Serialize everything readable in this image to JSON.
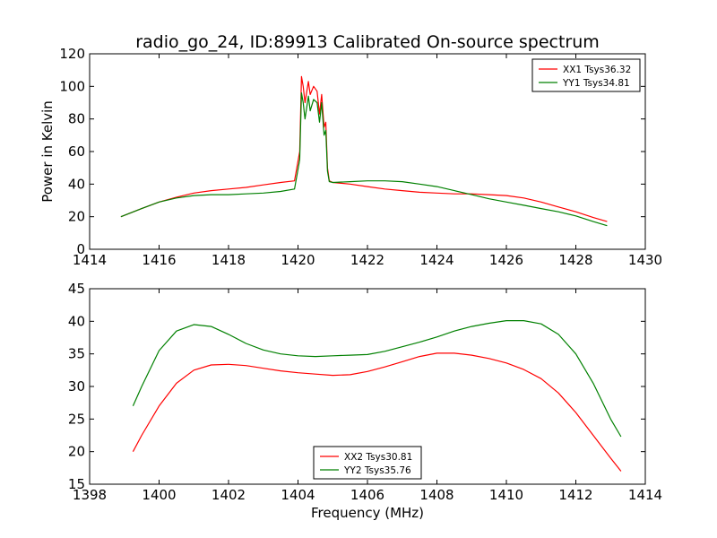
{
  "figure": {
    "background": "#ffffff"
  },
  "chart_data": [
    {
      "type": "line",
      "title": "radio_go_24, ID:89913 Calibrated On-source spectrum",
      "xlabel": "",
      "ylabel": "Power in Kelvin",
      "xlim": [
        1414,
        1430
      ],
      "ylim": [
        0,
        120
      ],
      "xticks": [
        1414,
        1416,
        1418,
        1420,
        1422,
        1424,
        1426,
        1428,
        1430
      ],
      "yticks": [
        0,
        20,
        40,
        60,
        80,
        100,
        120
      ],
      "legend_position": "top-right",
      "grid": false,
      "series": [
        {
          "name": "XX1 Tsys36.32",
          "color": "#ff0000",
          "x": [
            1414.9,
            1415.5,
            1416.0,
            1416.5,
            1417.0,
            1417.5,
            1418.0,
            1418.5,
            1419.0,
            1419.5,
            1419.9,
            1420.05,
            1420.1,
            1420.15,
            1420.2,
            1420.3,
            1420.35,
            1420.45,
            1420.55,
            1420.62,
            1420.68,
            1420.75,
            1420.8,
            1420.85,
            1420.9,
            1421.0,
            1421.5,
            1422.0,
            1422.5,
            1423.0,
            1423.5,
            1424.0,
            1424.5,
            1425.0,
            1425.5,
            1426.0,
            1426.5,
            1427.0,
            1427.5,
            1428.0,
            1428.5,
            1428.9
          ],
          "y": [
            20,
            25,
            29,
            32,
            34.5,
            36,
            37,
            38,
            39.5,
            41,
            42,
            60,
            106,
            100,
            90,
            103,
            95,
            100,
            97,
            83,
            95,
            75,
            78,
            50,
            42,
            41,
            40,
            38.5,
            37,
            36,
            35,
            34.5,
            34,
            34,
            33.5,
            33,
            31.5,
            29,
            26,
            23,
            19.5,
            17
          ]
        },
        {
          "name": "YY1 Tsys34.81",
          "color": "#008000",
          "x": [
            1414.9,
            1415.5,
            1416.0,
            1416.5,
            1417.0,
            1417.5,
            1418.0,
            1418.5,
            1419.0,
            1419.5,
            1419.9,
            1420.05,
            1420.1,
            1420.15,
            1420.2,
            1420.3,
            1420.35,
            1420.45,
            1420.55,
            1420.62,
            1420.68,
            1420.75,
            1420.8,
            1420.85,
            1420.9,
            1421.0,
            1421.5,
            1422.0,
            1422.5,
            1423.0,
            1423.5,
            1424.0,
            1424.5,
            1425.0,
            1425.5,
            1426.0,
            1426.5,
            1427.0,
            1427.5,
            1428.0,
            1428.5,
            1428.9
          ],
          "y": [
            20,
            25,
            29,
            31.5,
            33,
            33.5,
            33.5,
            34,
            34.5,
            35.5,
            37,
            55,
            96,
            90,
            80,
            94,
            85,
            92,
            90,
            78,
            90,
            70,
            73,
            48,
            41.5,
            41,
            41.5,
            42,
            42,
            41.5,
            40,
            38.5,
            36,
            33.5,
            31,
            29,
            27,
            25,
            23,
            20.5,
            17,
            14.5
          ]
        }
      ]
    },
    {
      "type": "line",
      "title": "",
      "xlabel": "Frequency (MHz)",
      "ylabel": "",
      "xlim": [
        1398,
        1414
      ],
      "ylim": [
        15,
        45
      ],
      "xticks": [
        1398,
        1400,
        1402,
        1404,
        1406,
        1408,
        1410,
        1412,
        1414
      ],
      "yticks": [
        15,
        20,
        25,
        30,
        35,
        40,
        45
      ],
      "legend_position": "bottom-center",
      "grid": false,
      "series": [
        {
          "name": "XX2 Tsys30.81",
          "color": "#ff0000",
          "x": [
            1399.25,
            1399.5,
            1400.0,
            1400.5,
            1401.0,
            1401.5,
            1402.0,
            1402.5,
            1403.0,
            1403.5,
            1404.0,
            1404.5,
            1405.0,
            1405.5,
            1406.0,
            1406.5,
            1407.0,
            1407.5,
            1408.0,
            1408.5,
            1409.0,
            1409.5,
            1410.0,
            1410.5,
            1411.0,
            1411.5,
            1412.0,
            1412.5,
            1413.0,
            1413.3
          ],
          "y": [
            20,
            22.5,
            27,
            30.5,
            32.5,
            33.3,
            33.4,
            33.2,
            32.8,
            32.4,
            32.1,
            31.9,
            31.7,
            31.8,
            32.3,
            33,
            33.8,
            34.6,
            35.1,
            35.1,
            34.8,
            34.3,
            33.6,
            32.6,
            31.2,
            29,
            26,
            22.5,
            19,
            17
          ]
        },
        {
          "name": "YY2 Tsys35.76",
          "color": "#008000",
          "x": [
            1399.25,
            1399.5,
            1400.0,
            1400.5,
            1401.0,
            1401.5,
            1402.0,
            1402.5,
            1403.0,
            1403.5,
            1404.0,
            1404.5,
            1405.0,
            1405.5,
            1406.0,
            1406.5,
            1407.0,
            1407.5,
            1408.0,
            1408.5,
            1409.0,
            1409.5,
            1410.0,
            1410.5,
            1411.0,
            1411.5,
            1412.0,
            1412.5,
            1413.0,
            1413.3
          ],
          "y": [
            27,
            30,
            35.5,
            38.5,
            39.5,
            39.2,
            38,
            36.6,
            35.6,
            35,
            34.7,
            34.6,
            34.7,
            34.8,
            34.9,
            35.4,
            36.1,
            36.8,
            37.6,
            38.5,
            39.2,
            39.7,
            40.1,
            40.1,
            39.6,
            38,
            35,
            30.5,
            25,
            22.3
          ]
        }
      ]
    }
  ]
}
